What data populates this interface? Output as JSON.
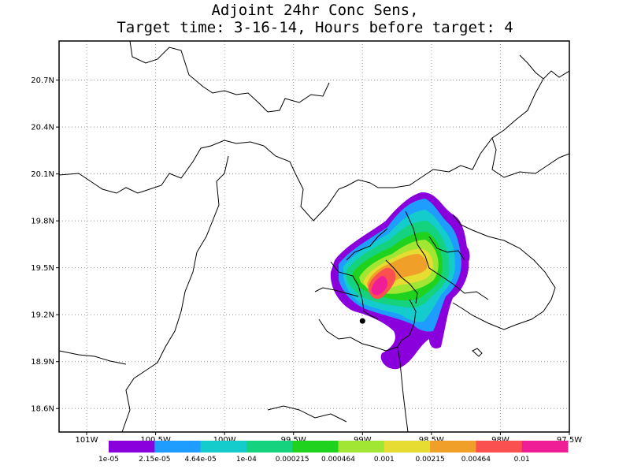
{
  "title": {
    "line1": "Adjoint 24hr Conc Sens,",
    "line2": "Target time: 3-16-14, Hours before target: 4"
  },
  "map": {
    "lon_range": [
      -101.2,
      -97.5
    ],
    "lat_range": [
      18.45,
      20.95
    ],
    "lat_ticks": [
      {
        "value": 20.7,
        "label": "20.7N"
      },
      {
        "value": 20.4,
        "label": "20.4N"
      },
      {
        "value": 20.1,
        "label": "20.1N"
      },
      {
        "value": 19.8,
        "label": "19.8N"
      },
      {
        "value": 19.5,
        "label": "19.5N"
      },
      {
        "value": 19.2,
        "label": "19.2N"
      },
      {
        "value": 18.9,
        "label": "18.9N"
      },
      {
        "value": 18.6,
        "label": "18.6N"
      }
    ],
    "lon_ticks": [
      {
        "value": -101.0,
        "label": "101W"
      },
      {
        "value": -100.5,
        "label": "100.5W"
      },
      {
        "value": -100.0,
        "label": "100W"
      },
      {
        "value": -99.5,
        "label": "99.5W"
      },
      {
        "value": -99.0,
        "label": "99W"
      },
      {
        "value": -98.5,
        "label": "98.5W"
      },
      {
        "value": -98.0,
        "label": "98W"
      },
      {
        "value": -97.5,
        "label": "97.5W"
      }
    ],
    "gridlines": true,
    "target_point": {
      "lon": -99.0,
      "lat": 19.16
    },
    "colorbar": {
      "colors": [
        "#8a00dc",
        "#1e9dff",
        "#14cccc",
        "#14d27e",
        "#1ed21e",
        "#a0e632",
        "#e6dc32",
        "#f0a028",
        "#fa5050",
        "#f01e96"
      ],
      "labels": [
        "1e-05",
        "2.15e-05",
        "4.64e-05",
        "1e-04",
        "0.000215",
        "0.000464",
        "0.001",
        "0.00215",
        "0.00464",
        "0.01"
      ]
    }
  }
}
